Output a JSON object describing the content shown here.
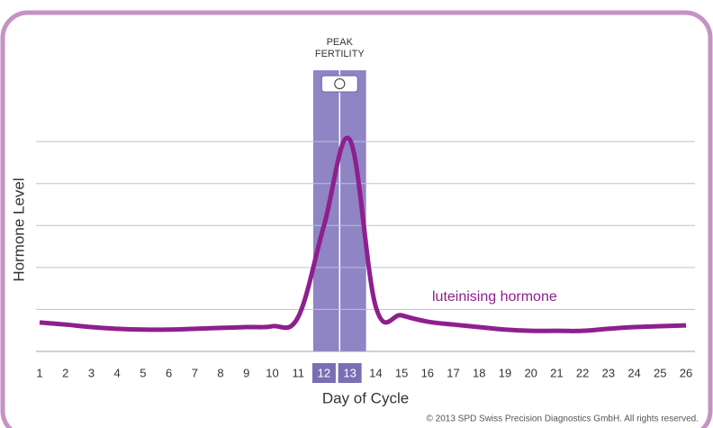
{
  "chart_data": {
    "type": "line",
    "x_label": "Day of Cycle",
    "y_label": "Hormone Level",
    "categories": [
      "1",
      "2",
      "3",
      "4",
      "5",
      "6",
      "7",
      "8",
      "9",
      "10",
      "11",
      "12",
      "13",
      "14",
      "15",
      "16",
      "17",
      "18",
      "19",
      "20",
      "21",
      "22",
      "23",
      "24",
      "25",
      "26"
    ],
    "series": [
      {
        "name": "luteinising hormone",
        "color": "#8e1f8e",
        "values": [
          0.69,
          0.64,
          0.58,
          0.54,
          0.52,
          0.52,
          0.54,
          0.56,
          0.58,
          0.6,
          0.82,
          3.0,
          5.04,
          1.07,
          0.86,
          0.71,
          0.64,
          0.58,
          0.52,
          0.49,
          0.49,
          0.49,
          0.54,
          0.58,
          0.6,
          0.62
        ]
      }
    ],
    "ylim": [
      0,
      7
    ],
    "yticks": [
      0,
      1,
      2,
      3,
      4,
      5
    ],
    "grid": true,
    "highlight": {
      "categories": [
        "12",
        "13"
      ],
      "label": [
        "PEAK",
        "FERTILITY"
      ],
      "color": "#8f84c4"
    },
    "footer": "© 2013 SPD Swiss Precision Diagnostics GmbH. All rights reserved."
  }
}
